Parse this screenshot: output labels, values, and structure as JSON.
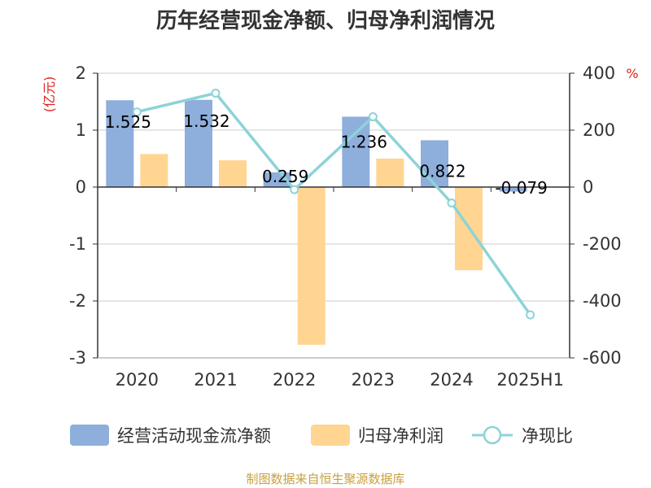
{
  "title": "历年经营现金净额、归母净利润情况",
  "left_unit": "(亿元)",
  "right_unit": "%",
  "source": "制图数据来自恒生聚源数据库",
  "colors": {
    "cash_flow": "#8eaedc",
    "net_profit": "#ffd591",
    "ratio": "#8dd3d8",
    "unit": "#e02020"
  },
  "chart_data": {
    "type": "bar",
    "categories": [
      "2020",
      "2021",
      "2022",
      "2023",
      "2024",
      "2025H1"
    ],
    "series": [
      {
        "name": "经营活动现金流净额",
        "type": "bar",
        "axis": "left",
        "values": [
          1.525,
          1.532,
          0.259,
          1.236,
          0.822,
          -0.079
        ],
        "labels": [
          "1.525",
          "1.532",
          "0.259",
          "1.236",
          "0.822",
          "-0.079"
        ]
      },
      {
        "name": "归母净利润",
        "type": "bar",
        "axis": "left",
        "values": [
          0.58,
          0.47,
          -2.77,
          0.5,
          -1.46,
          0.01
        ]
      },
      {
        "name": "净现比",
        "type": "line",
        "axis": "right",
        "values": [
          264,
          330,
          -9,
          247,
          -56,
          -449
        ]
      }
    ],
    "left_axis": {
      "ylim": [
        -3,
        2
      ],
      "ticks": [
        "2",
        "1",
        "0",
        "-1",
        "-2",
        "-3"
      ]
    },
    "right_axis": {
      "ylim": [
        -600,
        400
      ],
      "ticks": [
        "400",
        "200",
        "0",
        "-200",
        "-400",
        "-600"
      ]
    },
    "grid": true,
    "legend_position": "bottom"
  }
}
